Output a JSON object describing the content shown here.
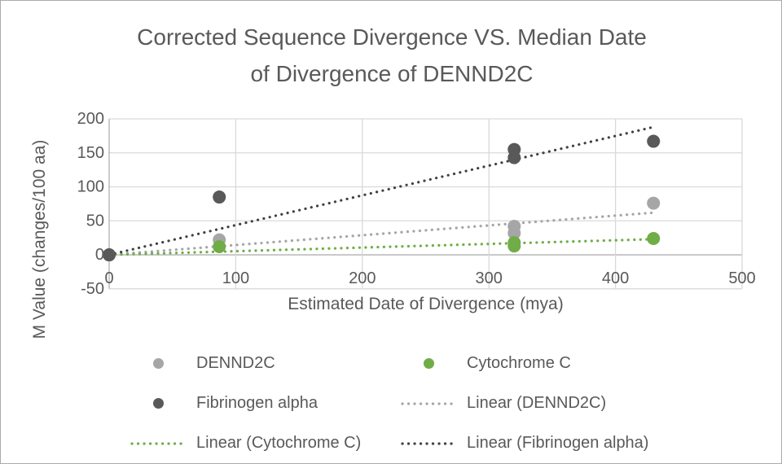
{
  "title": {
    "line1": "Corrected Sequence Divergence VS. Median Date",
    "line2": "of Divergence of DENND2C"
  },
  "colors": {
    "text": "#595959",
    "gridline": "#d9d9d9",
    "axis_line": "#b0b0b0",
    "background": "#ffffff",
    "border": "#ababab",
    "series_dennd2c": "#a6a6a6",
    "series_cytochrome_c": "#70ad47",
    "series_fibrinogen_alpha": "#595959",
    "trend_fibrinogen_alpha": "#404040"
  },
  "chart_data": {
    "type": "scatter",
    "title": "Corrected Sequence Divergence VS. Median Date of Divergence of DENND2C",
    "xlabel": "Estimated Date of Divergence (mya)",
    "ylabel": "M Value (changes/100 aa)",
    "xlim": [
      0,
      500
    ],
    "ylim": [
      -50,
      200
    ],
    "x_ticks": [
      0,
      100,
      200,
      300,
      400,
      500
    ],
    "y_ticks": [
      -50,
      0,
      50,
      100,
      150,
      200
    ],
    "grid": true,
    "legend_position": "bottom",
    "series": [
      {
        "name": "DENND2C",
        "color": "#a6a6a6",
        "marker": "circle",
        "points": [
          [
            0,
            0
          ],
          [
            87,
            22
          ],
          [
            320,
            32
          ],
          [
            320,
            42
          ],
          [
            430,
            76
          ]
        ]
      },
      {
        "name": "Cytochrome C",
        "color": "#70ad47",
        "marker": "circle",
        "points": [
          [
            0,
            0
          ],
          [
            87,
            12
          ],
          [
            320,
            13
          ],
          [
            320,
            18
          ],
          [
            430,
            24
          ]
        ]
      },
      {
        "name": "Fibrinogen alpha",
        "color": "#595959",
        "marker": "circle",
        "points": [
          [
            0,
            0
          ],
          [
            87,
            85
          ],
          [
            320,
            143
          ],
          [
            320,
            155
          ],
          [
            430,
            167
          ]
        ]
      }
    ],
    "trendlines": [
      {
        "name": "Linear (DENND2C)",
        "color": "#a6a6a6",
        "start": [
          0,
          0
        ],
        "end": [
          430,
          62
        ]
      },
      {
        "name": "Linear (Cytochrome C)",
        "color": "#70ad47",
        "start": [
          0,
          0
        ],
        "end": [
          430,
          23
        ]
      },
      {
        "name": "Linear (Fibrinogen alpha)",
        "color": "#404040",
        "start": [
          0,
          0
        ],
        "end": [
          430,
          188
        ]
      }
    ]
  },
  "legend": {
    "items": [
      {
        "label": "DENND2C",
        "marker": "dot",
        "color": "#a6a6a6"
      },
      {
        "label": "Cytochrome C",
        "marker": "dot",
        "color": "#70ad47"
      },
      {
        "label": "Fibrinogen alpha",
        "marker": "dot",
        "color": "#595959"
      },
      {
        "label": "Linear (DENND2C)",
        "marker": "dotted-line",
        "color": "#a6a6a6"
      },
      {
        "label": "Linear (Cytochrome C)",
        "marker": "dotted-line",
        "color": "#70ad47"
      },
      {
        "label": "Linear (Fibrinogen alpha)",
        "marker": "dotted-line",
        "color": "#404040"
      }
    ]
  }
}
